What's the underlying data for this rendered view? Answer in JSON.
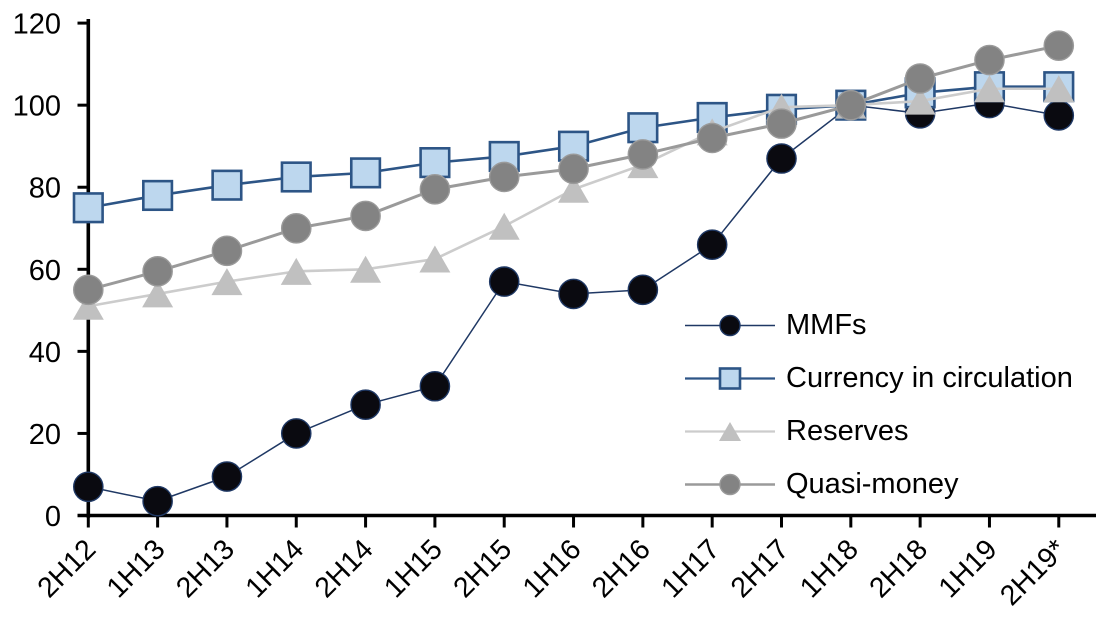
{
  "chart_data": {
    "type": "line",
    "title": "",
    "xlabel": "",
    "ylabel": "",
    "categories": [
      "2H12",
      "1H13",
      "2H13",
      "1H14",
      "2H14",
      "1H15",
      "2H15",
      "1H16",
      "2H16",
      "1H17",
      "2H17",
      "1H18",
      "2H18",
      "1H19",
      "2H19*"
    ],
    "series": [
      {
        "name": "MMFs",
        "marker": "circle",
        "color": "#1F3864",
        "marker_fill": "#0A0A10",
        "line_width": 1.5,
        "values": [
          7,
          3.5,
          9.5,
          20,
          27,
          31.5,
          57,
          54,
          55,
          66,
          87,
          100,
          98,
          100.5,
          97.5
        ]
      },
      {
        "name": "Currency in circulation",
        "marker": "square",
        "color": "#2D5586",
        "marker_fill": "#BDD7EE",
        "line_width": 2.6,
        "values": [
          75,
          78,
          80.5,
          82.5,
          83.5,
          86,
          87.5,
          90,
          94.5,
          97,
          99,
          100,
          103,
          104.5,
          104.5
        ]
      },
      {
        "name": "Reserves",
        "marker": "triangle",
        "color": "#CCCCCC",
        "marker_fill": "#C0C0C0",
        "line_width": 2.6,
        "values": [
          51,
          54,
          57,
          59.5,
          60,
          62.5,
          70.5,
          79.5,
          85.5,
          93.5,
          99.5,
          100,
          101,
          104,
          104
        ]
      },
      {
        "name": "Quasi-money",
        "marker": "circle",
        "color": "#9A9A9A",
        "marker_fill": "#838383",
        "line_width": 3,
        "values": [
          55,
          59.5,
          64.5,
          70,
          73,
          79.5,
          82.5,
          84.5,
          88,
          92,
          95.5,
          100,
          106.5,
          111,
          114.5
        ]
      }
    ],
    "ylim": [
      0,
      120
    ],
    "yticks": [
      0,
      20,
      40,
      60,
      80,
      100,
      120
    ],
    "axis_color": "#000000",
    "grid": false,
    "legend_position": "inside-right"
  }
}
